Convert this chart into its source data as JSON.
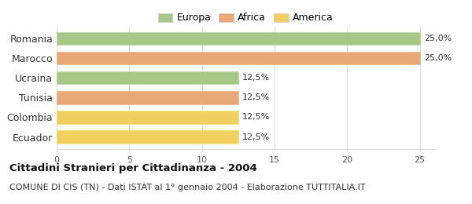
{
  "categories": [
    "Romania",
    "Marocco",
    "Ucraina",
    "Tunisia",
    "Colombia",
    "Ecuador"
  ],
  "values": [
    25.0,
    25.0,
    12.5,
    12.5,
    12.5,
    12.5
  ],
  "bar_colors": [
    "#a8c888",
    "#e8a878",
    "#a8c888",
    "#e8a878",
    "#f0d060",
    "#f0d060"
  ],
  "bar_edge_colors": [
    "#b8d898",
    "#f0b888",
    "#b8d898",
    "#f0b888",
    "#f8e070",
    "#f8e070"
  ],
  "value_labels": [
    "25,0%",
    "25,0%",
    "12,5%",
    "12,5%",
    "12,5%",
    "12,5%"
  ],
  "legend_labels": [
    "Europa",
    "Africa",
    "America"
  ],
  "legend_colors": [
    "#a8c888",
    "#e8a878",
    "#f0d060"
  ],
  "xlim": [
    0,
    26
  ],
  "xticks": [
    0,
    5,
    10,
    15,
    20,
    25
  ],
  "title": "Cittadini Stranieri per Cittadinanza - 2004",
  "subtitle": "COMUNE DI CIS (TN) - Dati ISTAT al 1° gennaio 2004 - Elaborazione TUTTITALIA.IT",
  "title_fontsize": 9.5,
  "subtitle_fontsize": 8,
  "background_color": "#ffffff",
  "grid_color": "#dddddd"
}
